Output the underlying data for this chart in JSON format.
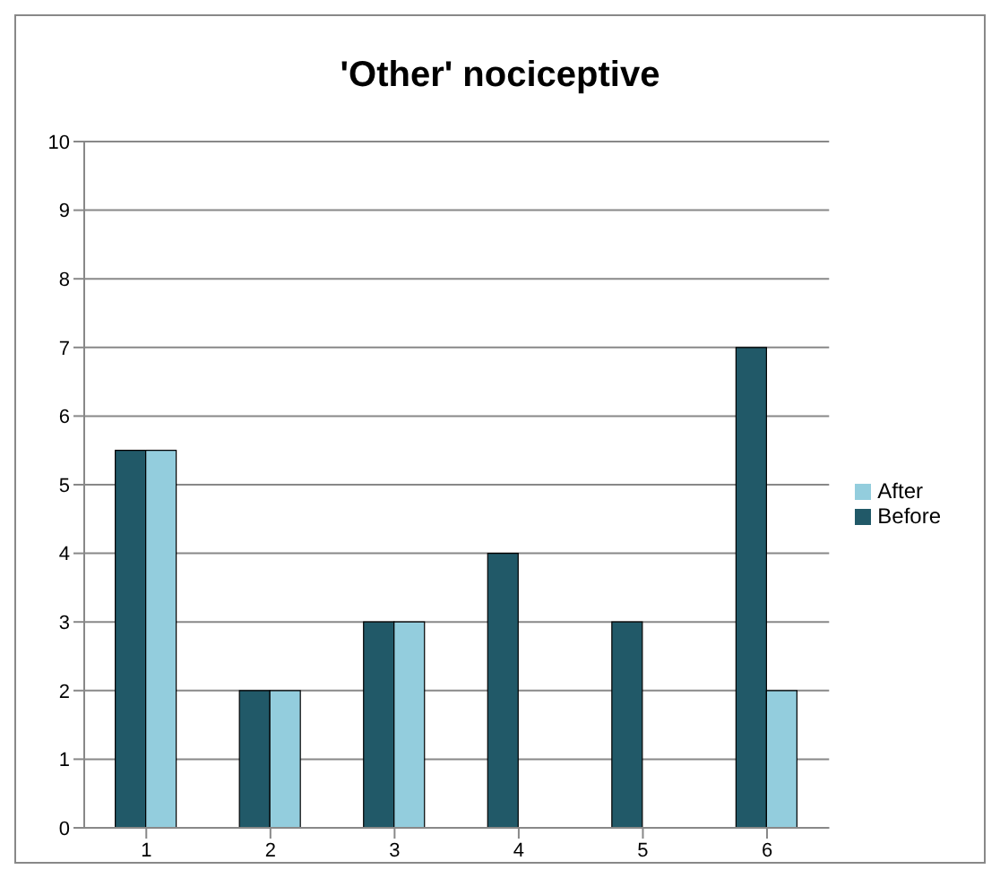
{
  "chart_data": {
    "type": "bar",
    "title": "'Other' nociceptive",
    "categories": [
      "1",
      "2",
      "3",
      "4",
      "5",
      "6"
    ],
    "series": [
      {
        "name": "Before",
        "color": "#215968",
        "values": [
          5.5,
          2,
          3,
          4,
          3,
          7
        ]
      },
      {
        "name": "After",
        "color": "#93cddd",
        "values": [
          5.5,
          2,
          3,
          null,
          null,
          2
        ]
      }
    ],
    "ylim": [
      0,
      10
    ],
    "yticks": [
      0,
      1,
      2,
      3,
      4,
      5,
      6,
      7,
      8,
      9,
      10
    ],
    "grid": "y",
    "legend": "right"
  }
}
